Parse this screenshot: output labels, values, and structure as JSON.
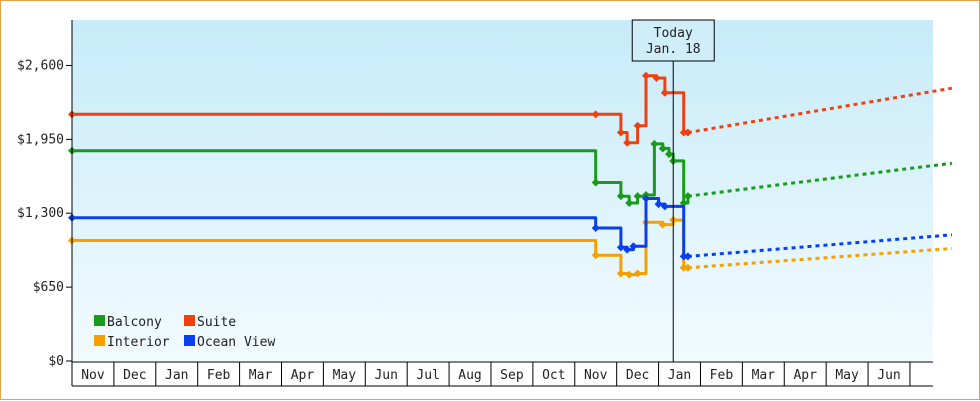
{
  "chart_data": {
    "type": "line",
    "title": "",
    "xlabel": "",
    "ylabel": "",
    "ylim": [
      0,
      3000
    ],
    "yticks": [
      0,
      650,
      1300,
      1950,
      2600
    ],
    "ytick_labels": [
      "$0",
      "$650",
      "$1,300",
      "$1,950",
      "$2,600"
    ],
    "x_month_labels": [
      "Nov",
      "Dec",
      "Jan",
      "Feb",
      "Mar",
      "Apr",
      "May",
      "Jun",
      "Jul",
      "Aug",
      "Sep",
      "Oct",
      "Nov",
      "Dec",
      "Jan",
      "Feb",
      "Mar",
      "Apr",
      "May",
      "Jun"
    ],
    "today_annotation": {
      "line1": "Today",
      "line2": "Jan. 18",
      "x": 14.35
    },
    "legend": {
      "placement": "bottom-left"
    },
    "grid": false,
    "series": [
      {
        "name": "Balcony",
        "color": "#1a9a1a",
        "values": [
          [
            0,
            1850
          ],
          [
            12.5,
            1850
          ],
          [
            12.5,
            1570
          ],
          [
            13.1,
            1570
          ],
          [
            13.1,
            1450
          ],
          [
            13.3,
            1450
          ],
          [
            13.3,
            1390
          ],
          [
            13.5,
            1390
          ],
          [
            13.5,
            1450
          ],
          [
            13.7,
            1450
          ],
          [
            13.7,
            1460
          ],
          [
            13.9,
            1460
          ],
          [
            13.9,
            1910
          ],
          [
            14.1,
            1910
          ],
          [
            14.1,
            1870
          ],
          [
            14.25,
            1870
          ],
          [
            14.25,
            1820
          ],
          [
            14.35,
            1820
          ],
          [
            14.35,
            1760
          ],
          [
            14.6,
            1760
          ],
          [
            14.6,
            1390
          ],
          [
            14.7,
            1390
          ],
          [
            14.7,
            1450
          ]
        ],
        "projection": [
          [
            14.7,
            1450
          ],
          [
            21.0,
            1740
          ]
        ]
      },
      {
        "name": "Suite",
        "color": "#f04010",
        "values": [
          [
            0,
            2170
          ],
          [
            12.5,
            2170
          ],
          [
            12.5,
            2170
          ],
          [
            13.1,
            2170
          ],
          [
            13.1,
            2010
          ],
          [
            13.25,
            2010
          ],
          [
            13.25,
            1920
          ],
          [
            13.5,
            1920
          ],
          [
            13.5,
            2070
          ],
          [
            13.7,
            2070
          ],
          [
            13.7,
            2510
          ],
          [
            13.95,
            2510
          ],
          [
            13.95,
            2490
          ],
          [
            14.15,
            2490
          ],
          [
            14.15,
            2360
          ],
          [
            14.6,
            2360
          ],
          [
            14.6,
            2010
          ],
          [
            14.7,
            2010
          ]
        ],
        "projection": [
          [
            14.7,
            2010
          ],
          [
            21.0,
            2400
          ]
        ]
      },
      {
        "name": "Interior",
        "color": "#f5a000",
        "values": [
          [
            0,
            1060
          ],
          [
            12.5,
            1060
          ],
          [
            12.5,
            930
          ],
          [
            13.1,
            930
          ],
          [
            13.1,
            770
          ],
          [
            13.3,
            770
          ],
          [
            13.3,
            760
          ],
          [
            13.5,
            760
          ],
          [
            13.5,
            770
          ],
          [
            13.7,
            770
          ],
          [
            13.7,
            1220
          ],
          [
            14.1,
            1220
          ],
          [
            14.1,
            1200
          ],
          [
            14.35,
            1200
          ],
          [
            14.35,
            1240
          ],
          [
            14.6,
            1240
          ],
          [
            14.6,
            820
          ],
          [
            14.7,
            820
          ]
        ],
        "projection": [
          [
            14.7,
            820
          ],
          [
            21.0,
            990
          ]
        ]
      },
      {
        "name": "Ocean View",
        "color": "#0a3ff0",
        "values": [
          [
            0,
            1260
          ],
          [
            12.5,
            1260
          ],
          [
            12.5,
            1170
          ],
          [
            13.1,
            1170
          ],
          [
            13.1,
            1000
          ],
          [
            13.25,
            1000
          ],
          [
            13.25,
            980
          ],
          [
            13.4,
            980
          ],
          [
            13.4,
            1010
          ],
          [
            13.7,
            1010
          ],
          [
            13.7,
            1430
          ],
          [
            14.0,
            1430
          ],
          [
            14.0,
            1380
          ],
          [
            14.15,
            1380
          ],
          [
            14.15,
            1360
          ],
          [
            14.6,
            1360
          ],
          [
            14.6,
            920
          ],
          [
            14.7,
            920
          ]
        ],
        "projection": [
          [
            14.7,
            920
          ],
          [
            21.0,
            1110
          ]
        ]
      }
    ]
  }
}
